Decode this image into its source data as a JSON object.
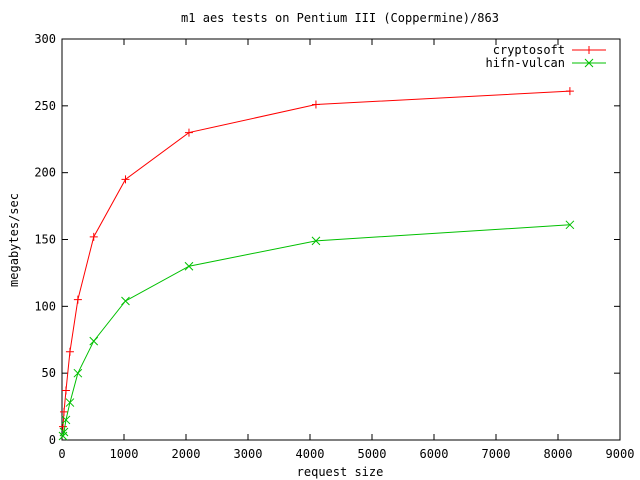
{
  "chart_data": {
    "type": "line",
    "title": "m1 aes tests on Pentium III (Coppermine)/863",
    "xlabel": "request size",
    "ylabel": "megabytes/sec",
    "xlim": [
      0,
      9000
    ],
    "ylim": [
      0,
      300
    ],
    "xticks": [
      0,
      1000,
      2000,
      3000,
      4000,
      5000,
      6000,
      7000,
      8000,
      9000
    ],
    "yticks": [
      0,
      50,
      100,
      150,
      200,
      250,
      300
    ],
    "grid": false,
    "legend": "top-right",
    "series": [
      {
        "name": "cryptosoft",
        "color": "#ff0000",
        "marker": "plus",
        "x": [
          16,
          32,
          64,
          128,
          256,
          512,
          1024,
          2048,
          4096,
          8192
        ],
        "y": [
          10,
          21,
          37,
          66,
          105,
          152,
          195,
          230,
          251,
          261
        ]
      },
      {
        "name": "hifn-vulcan",
        "color": "#00c000",
        "marker": "cross",
        "x": [
          16,
          32,
          64,
          128,
          256,
          512,
          1024,
          2048,
          4096,
          8192
        ],
        "y": [
          3,
          6,
          15,
          28,
          50,
          74,
          104,
          130,
          149,
          161
        ]
      }
    ]
  }
}
